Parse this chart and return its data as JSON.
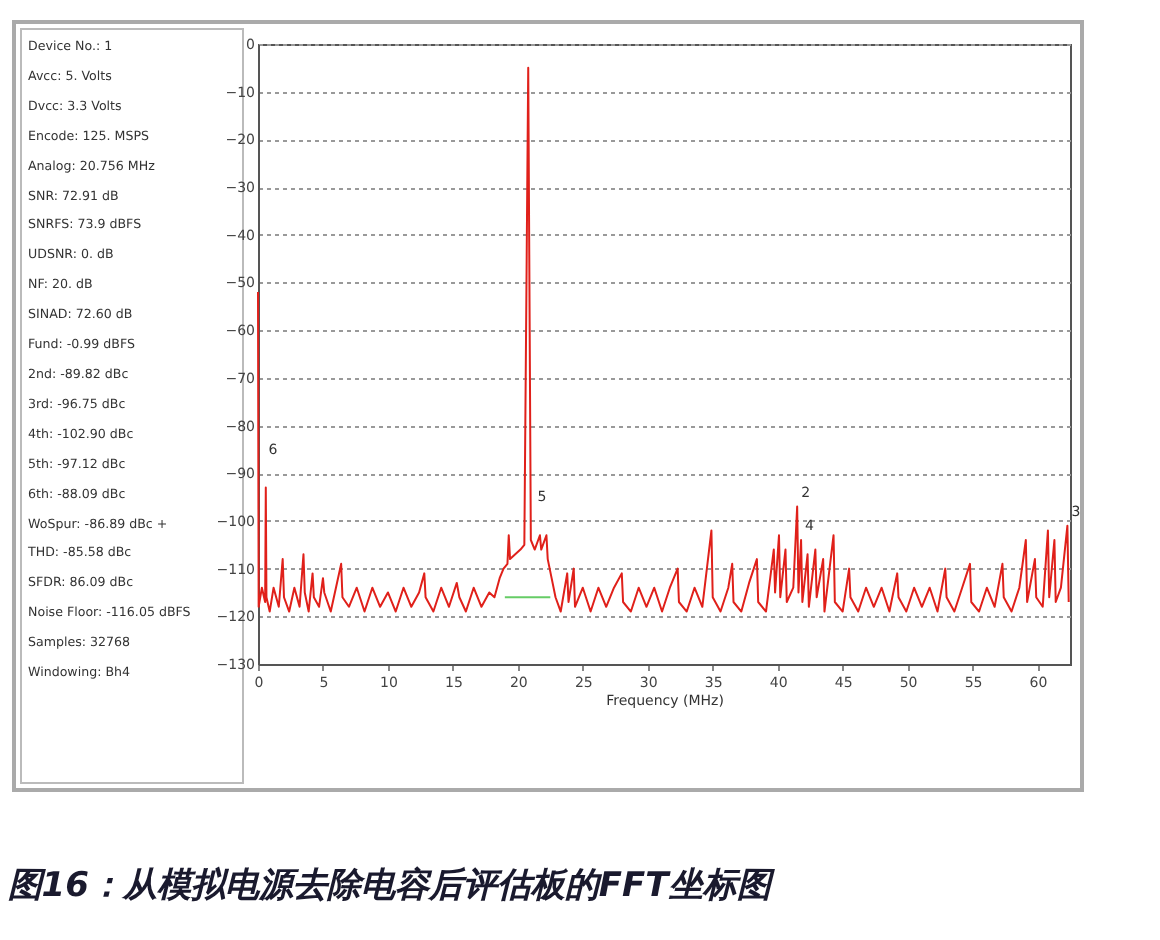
{
  "chart_data": [
    {
      "type": "other",
      "annotations": [
        "Device No.: 1",
        "Avcc: 5. Volts",
        "Dvcc: 3.3 Volts",
        "Encode: 125. MSPS",
        "Analog: 20.756 MHz",
        "SNR: 72.91 dB",
        "SNRFS: 73.9 dBFS",
        "UDSNR: 0. dB",
        "NF: 20. dB",
        "SINAD: 72.60 dB",
        "Fund: -0.99 dBFS",
        "2nd: -89.82 dBc",
        "3rd: -96.75 dBc",
        "4th: -102.90 dBc",
        "5th: -97.12 dBc",
        "6th: -88.09 dBc",
        "WoSpur: -86.89 dBc +",
        "THD: -85.58 dBc",
        "SFDR: 86.09 dBc",
        "Noise Floor: -116.05 dBFS",
        "Samples: 32768",
        "Windowing: Bh4"
      ]
    },
    {
      "type": "line",
      "title": "图16：从模拟电源去除电容后评估板的FFT坐标图",
      "xlabel": "Frequency (MHz)",
      "xlim": [
        0,
        62.5
      ],
      "xticks": [
        0,
        5,
        10,
        15,
        20,
        25,
        30,
        35,
        40,
        45,
        50,
        55,
        60
      ],
      "ylim": [
        -130,
        0
      ],
      "yticks": [
        0,
        -10,
        -20,
        -30,
        -40,
        -50,
        -60,
        -70,
        -80,
        -90,
        -100,
        -110,
        -120,
        -130
      ],
      "grid": "y",
      "legend": false,
      "annotations": [
        {
          "text": "6",
          "x": 0.5,
          "y": -88
        },
        {
          "text": "5",
          "x": 21.2,
          "y": -98
        },
        {
          "text": "2",
          "x": 41.5,
          "y": -97
        },
        {
          "text": "4",
          "x": 41.8,
          "y": -104
        },
        {
          "text": "3",
          "x": 62.3,
          "y": -101
        }
      ],
      "series": [
        {
          "color": "#e0201a",
          "x": [
            0,
            0.05,
            0.3,
            0.55,
            0.6,
            0.65,
            0.9,
            1.2,
            1.6,
            1.9,
            2.0,
            2.4,
            2.8,
            3.2,
            3.5,
            3.6,
            3.9,
            4.2,
            4.3,
            4.7,
            5.0,
            5.1,
            5.6,
            6.0,
            6.4,
            6.5,
            7,
            7.6,
            8.2,
            8.8,
            9.4,
            10,
            10.6,
            11.2,
            11.8,
            12.4,
            12.8,
            12.9,
            13.5,
            14.1,
            14.7,
            15.3,
            15.5,
            16,
            16.6,
            17.2,
            17.8,
            18.2,
            18.6,
            18.9,
            19.2,
            19.3,
            19.4,
            19.8,
            20.2,
            20.5,
            20.8,
            21.0,
            21.3,
            21.7,
            21.8,
            22.2,
            22.3,
            22.6,
            22.9,
            23.3,
            23.8,
            23.9,
            24.3,
            24.4,
            25,
            25.6,
            26.2,
            26.8,
            27.4,
            28,
            28.1,
            28.7,
            29.3,
            29.9,
            30.5,
            31.1,
            31.7,
            32.3,
            32.4,
            33,
            33.6,
            34.2,
            34.9,
            35.0,
            35.6,
            36.2,
            36.5,
            36.6,
            37.2,
            37.8,
            38.4,
            38.5,
            39.1,
            39.7,
            39.8,
            40.1,
            40.2,
            40.6,
            40.7,
            41.2,
            41.5,
            41.6,
            41.8,
            41.9,
            42.3,
            42.4,
            42.9,
            43.0,
            43.5,
            43.6,
            44.3,
            44.4,
            45,
            45.5,
            45.6,
            46.2,
            46.8,
            47.4,
            48,
            48.6,
            49.2,
            49.3,
            49.9,
            50.5,
            51.1,
            51.7,
            52.3,
            52.9,
            53.0,
            53.6,
            54.2,
            54.8,
            54.9,
            55.5,
            56.1,
            56.7,
            57.3,
            57.4,
            58,
            58.6,
            59.1,
            59.2,
            59.8,
            59.9,
            60.4,
            60.8,
            60.9,
            61.3,
            61.4,
            61.8,
            62.3,
            62.4
          ],
          "values": [
            -52,
            -118,
            -114,
            -117,
            -93,
            -116,
            -119,
            -114,
            -118,
            -108,
            -116,
            -119,
            -114,
            -118,
            -107,
            -115,
            -119,
            -111,
            -116,
            -118,
            -112,
            -115,
            -119,
            -114,
            -109,
            -116,
            -118,
            -114,
            -119,
            -114,
            -118,
            -115,
            -119,
            -114,
            -118,
            -115,
            -111,
            -116,
            -119,
            -114,
            -118,
            -113,
            -116,
            -119,
            -114,
            -118,
            -115,
            -116,
            -112,
            -110,
            -109,
            -103,
            -108,
            -107,
            -106,
            -105,
            -5,
            -104,
            -106,
            -103,
            -106,
            -103,
            -108,
            -112,
            -116,
            -119,
            -111,
            -117,
            -110,
            -118,
            -114,
            -119,
            -114,
            -118,
            -114,
            -111,
            -117,
            -119,
            -114,
            -118,
            -114,
            -119,
            -114,
            -110,
            -117,
            -119,
            -114,
            -118,
            -102,
            -116,
            -119,
            -114,
            -109,
            -117,
            -119,
            -113,
            -108,
            -117,
            -119,
            -106,
            -115,
            -103,
            -116,
            -106,
            -117,
            -114,
            -97,
            -115,
            -104,
            -117,
            -107,
            -118,
            -106,
            -116,
            -108,
            -119,
            -103,
            -117,
            -119,
            -110,
            -116,
            -119,
            -114,
            -118,
            -114,
            -119,
            -111,
            -116,
            -119,
            -114,
            -118,
            -114,
            -119,
            -110,
            -116,
            -119,
            -114,
            -109,
            -117,
            -119,
            -114,
            -118,
            -109,
            -116,
            -119,
            -114,
            -104,
            -117,
            -108,
            -116,
            -118,
            -102,
            -116,
            -104,
            -117,
            -114,
            -101,
            -117
          ]
        },
        {
          "color": "#66cc66",
          "x": [
            19,
            22.5
          ],
          "values": [
            -116,
            -116
          ]
        }
      ]
    }
  ]
}
